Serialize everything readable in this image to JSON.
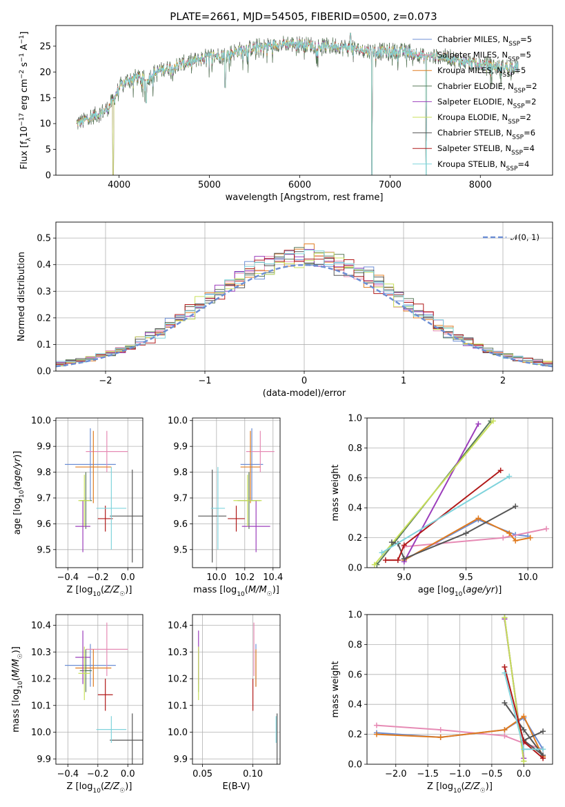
{
  "title": "PLATE=2661, MJD=54505, FIBERID=0500, z=0.073",
  "colors": {
    "Chabrier MILES": "#6c8ed4",
    "Salpeter MILES": "#e68ab4",
    "Kroupa MILES": "#e07b1f",
    "Chabrier ELODIE": "#5a7a5a",
    "Salpeter ELODIE": "#9b3dbb",
    "Kroupa ELODIE": "#c8e05a",
    "Chabrier STELIB": "#555555",
    "Salpeter STELIB": "#b01818",
    "Kroupa STELIB": "#7fd3dc"
  },
  "chart_data": [
    {
      "id": "spectrum",
      "type": "line",
      "xlabel": "wavelength [Angstrom, rest frame]",
      "ylabel": "Flux [f_λ 10^-17 erg cm^-2 s^-1 A^-1]",
      "xlim": [
        3300,
        8800
      ],
      "ylim": [
        0,
        29
      ],
      "xticks": [
        4000,
        5000,
        6000,
        7000,
        8000
      ],
      "yticks": [
        0,
        5,
        10,
        15,
        20,
        25
      ],
      "legend_position": "right",
      "legend": [
        {
          "name": "Chabrier MILES",
          "label": "Chabrier MILES, N",
          "sub": "SSP",
          "suffix": "=5"
        },
        {
          "name": "Salpeter MILES",
          "label": "Salpeter MILES, N",
          "sub": "SSP",
          "suffix": "=5"
        },
        {
          "name": "Kroupa MILES",
          "label": "Kroupa MILES, N",
          "sub": "SSP",
          "suffix": "=5"
        },
        {
          "name": "Chabrier ELODIE",
          "label": "Chabrier ELODIE, N",
          "sub": "SSP",
          "suffix": "=2"
        },
        {
          "name": "Salpeter ELODIE",
          "label": "Salpeter ELODIE, N",
          "sub": "SSP",
          "suffix": "=2"
        },
        {
          "name": "Kroupa ELODIE",
          "label": "Kroupa ELODIE, N",
          "sub": "SSP",
          "suffix": "=2"
        },
        {
          "name": "Chabrier STELIB",
          "label": "Chabrier STELIB, N",
          "sub": "SSP",
          "suffix": "=6"
        },
        {
          "name": "Salpeter STELIB",
          "label": "Salpeter STELIB, N",
          "sub": "SSP",
          "suffix": "=4"
        },
        {
          "name": "Kroupa STELIB",
          "label": "Kroupa STELIB, N",
          "sub": "SSP",
          "suffix": "=4"
        }
      ],
      "continuum": [
        [
          3530,
          10
        ],
        [
          3600,
          10.5
        ],
        [
          3700,
          11.5
        ],
        [
          3800,
          12
        ],
        [
          3880,
          13
        ],
        [
          3950,
          15
        ],
        [
          4000,
          17
        ],
        [
          4100,
          18.5
        ],
        [
          4200,
          19
        ],
        [
          4300,
          18.5
        ],
        [
          4400,
          20
        ],
        [
          4600,
          21
        ],
        [
          4800,
          22
        ],
        [
          5000,
          23
        ],
        [
          5200,
          23.5
        ],
        [
          5400,
          24.5
        ],
        [
          5600,
          25
        ],
        [
          5800,
          25.5
        ],
        [
          6000,
          25.5
        ],
        [
          6200,
          25
        ],
        [
          6400,
          25
        ],
        [
          6600,
          24.5
        ],
        [
          6800,
          24
        ],
        [
          7000,
          24
        ],
        [
          7200,
          24
        ],
        [
          7400,
          23
        ],
        [
          7600,
          23
        ],
        [
          7800,
          22
        ],
        [
          8000,
          21.5
        ],
        [
          8200,
          21
        ],
        [
          8400,
          21
        ]
      ],
      "data_range": [
        3530,
        8420
      ],
      "dips": [
        [
          3934,
          2
        ],
        [
          4300,
          14
        ],
        [
          5175,
          17
        ],
        [
          6563,
          27.5
        ],
        [
          6800,
          0
        ],
        [
          7400,
          0
        ]
      ]
    },
    {
      "id": "residuals",
      "type": "histogram",
      "xlabel": "(data-model)/error",
      "ylabel": "Normed distribution",
      "xlim": [
        -2.5,
        2.5
      ],
      "ylim": [
        0,
        0.56
      ],
      "xticks": [
        -2,
        -1,
        0,
        1,
        2
      ],
      "yticks": [
        0.0,
        0.1,
        0.2,
        0.3,
        0.4,
        0.5
      ],
      "legend_position": "top-right",
      "reference_curve": {
        "name": "𝒩(0, 1)",
        "mean": 0,
        "sigma": 1
      },
      "bins": 50,
      "series_note": "nine histograms, one per model, close to the normal curve"
    },
    {
      "id": "age-vs-Z",
      "type": "errorbar",
      "xlabel": "Z [log10(Z/Z☉)]",
      "ylabel": "age [log10(age/yr)]",
      "xlim": [
        -0.48,
        0.1
      ],
      "ylim": [
        9.43,
        10.01
      ],
      "xticks": [
        -0.4,
        -0.2,
        0.0
      ],
      "yticks": [
        9.5,
        9.6,
        9.7,
        9.8,
        9.9,
        10.0
      ],
      "points": [
        {
          "model": "Chabrier MILES",
          "x": -0.25,
          "xerr": 0.17,
          "y": 9.83,
          "yerr": 0.14
        },
        {
          "model": "Salpeter MILES",
          "x": -0.14,
          "xerr": 0.14,
          "y": 9.88,
          "yerr": 0.08
        },
        {
          "model": "Kroupa MILES",
          "x": -0.23,
          "xerr": 0.12,
          "y": 9.82,
          "yerr": 0.14
        },
        {
          "model": "Chabrier ELODIE",
          "x": -0.28,
          "xerr": 0.04,
          "y": 9.69,
          "yerr": 0.11
        },
        {
          "model": "Salpeter ELODIE",
          "x": -0.3,
          "xerr": 0.05,
          "y": 9.59,
          "yerr": 0.1
        },
        {
          "model": "Kroupa ELODIE",
          "x": -0.29,
          "xerr": 0.04,
          "y": 9.69,
          "yerr": 0.1
        },
        {
          "model": "Chabrier STELIB",
          "x": 0.03,
          "xerr": 0.15,
          "y": 9.63,
          "yerr": 0.18
        },
        {
          "model": "Salpeter STELIB",
          "x": -0.15,
          "xerr": 0.05,
          "y": 9.62,
          "yerr": 0.05
        },
        {
          "model": "Kroupa STELIB",
          "x": -0.11,
          "xerr": 0.1,
          "y": 9.66,
          "yerr": 0.16
        }
      ]
    },
    {
      "id": "age-vs-mass",
      "type": "errorbar",
      "xlabel": "mass [log10(M/M☉)]",
      "ylabel": "",
      "xlim": [
        9.83,
        10.45
      ],
      "ylim": [
        9.43,
        10.01
      ],
      "xticks": [
        10.0,
        10.2,
        10.4
      ],
      "yticks": [
        9.5,
        9.6,
        9.7,
        9.8,
        9.9,
        10.0
      ],
      "points": [
        {
          "model": "Chabrier MILES",
          "x": 10.25,
          "xerr": 0.08,
          "y": 9.83,
          "yerr": 0.14
        },
        {
          "model": "Salpeter MILES",
          "x": 10.31,
          "xerr": 0.1,
          "y": 9.88,
          "yerr": 0.08
        },
        {
          "model": "Kroupa MILES",
          "x": 10.24,
          "xerr": 0.07,
          "y": 9.82,
          "yerr": 0.14
        },
        {
          "model": "Chabrier ELODIE",
          "x": 10.23,
          "xerr": 0.08,
          "y": 9.69,
          "yerr": 0.11
        },
        {
          "model": "Salpeter ELODIE",
          "x": 10.28,
          "xerr": 0.1,
          "y": 9.59,
          "yerr": 0.1
        },
        {
          "model": "Kroupa ELODIE",
          "x": 10.22,
          "xerr": 0.1,
          "y": 9.69,
          "yerr": 0.1
        },
        {
          "model": "Chabrier STELIB",
          "x": 9.97,
          "xerr": 0.1,
          "y": 9.63,
          "yerr": 0.18
        },
        {
          "model": "Salpeter STELIB",
          "x": 10.14,
          "xerr": 0.06,
          "y": 9.62,
          "yerr": 0.05
        },
        {
          "model": "Kroupa STELIB",
          "x": 10.01,
          "xerr": 0.05,
          "y": 9.66,
          "yerr": 0.16
        }
      ]
    },
    {
      "id": "weight-vs-age",
      "type": "line",
      "xlabel": "age [log10(age/yr)]",
      "ylabel": "mass weight",
      "xlim": [
        8.7,
        10.2
      ],
      "ylim": [
        0,
        1
      ],
      "xticks": [
        9.0,
        9.5,
        10.0
      ],
      "yticks": [
        0.0,
        0.2,
        0.4,
        0.6,
        0.8,
        1.0
      ],
      "series": [
        {
          "name": "Chabrier MILES",
          "x": [
            9.0,
            9.6,
            9.9,
            10.0
          ],
          "y": [
            0.05,
            0.32,
            0.22,
            0.21
          ]
        },
        {
          "name": "Salpeter MILES",
          "x": [
            9.0,
            9.8,
            10.15
          ],
          "y": [
            0.14,
            0.2,
            0.26
          ]
        },
        {
          "name": "Kroupa MILES",
          "x": [
            9.0,
            9.6,
            9.85,
            9.9,
            10.02
          ],
          "y": [
            0.05,
            0.33,
            0.23,
            0.18,
            0.2
          ]
        },
        {
          "name": "Chabrier ELODIE",
          "x": [
            8.78,
            9.7
          ],
          "y": [
            0.02,
            0.98
          ]
        },
        {
          "name": "Salpeter ELODIE",
          "x": [
            9.0,
            9.6
          ],
          "y": [
            0.04,
            0.96
          ]
        },
        {
          "name": "Kroupa ELODIE",
          "x": [
            8.76,
            9.72
          ],
          "y": [
            0.02,
            0.98
          ]
        },
        {
          "name": "Chabrier STELIB",
          "x": [
            8.9,
            8.95,
            9.0,
            9.5,
            9.9
          ],
          "y": [
            0.17,
            0.16,
            0.06,
            0.23,
            0.41
          ]
        },
        {
          "name": "Salpeter STELIB",
          "x": [
            8.85,
            8.95,
            9.0,
            9.78
          ],
          "y": [
            0.05,
            0.05,
            0.15,
            0.65
          ]
        },
        {
          "name": "Kroupa STELIB",
          "x": [
            8.82,
            9.85
          ],
          "y": [
            0.1,
            0.61
          ]
        }
      ]
    },
    {
      "id": "mass-vs-Z",
      "type": "errorbar",
      "xlabel": "Z [log10(Z/Z☉)]",
      "ylabel": "mass [log10(M/M☉)]",
      "xlim": [
        -0.48,
        0.1
      ],
      "ylim": [
        9.88,
        10.44
      ],
      "xticks": [
        -0.4,
        -0.2,
        0.0
      ],
      "yticks": [
        9.9,
        10.0,
        10.1,
        10.2,
        10.3,
        10.4
      ],
      "points": [
        {
          "model": "Chabrier MILES",
          "x": -0.25,
          "xerr": 0.17,
          "y": 10.25,
          "yerr": 0.08
        },
        {
          "model": "Salpeter MILES",
          "x": -0.14,
          "xerr": 0.14,
          "y": 10.31,
          "yerr": 0.1
        },
        {
          "model": "Kroupa MILES",
          "x": -0.23,
          "xerr": 0.12,
          "y": 10.24,
          "yerr": 0.07
        },
        {
          "model": "Chabrier ELODIE",
          "x": -0.28,
          "xerr": 0.04,
          "y": 10.23,
          "yerr": 0.08
        },
        {
          "model": "Salpeter ELODIE",
          "x": -0.3,
          "xerr": 0.05,
          "y": 10.28,
          "yerr": 0.1
        },
        {
          "model": "Kroupa ELODIE",
          "x": -0.29,
          "xerr": 0.04,
          "y": 10.22,
          "yerr": 0.1
        },
        {
          "model": "Chabrier STELIB",
          "x": 0.03,
          "xerr": 0.15,
          "y": 9.97,
          "yerr": 0.1
        },
        {
          "model": "Salpeter STELIB",
          "x": -0.15,
          "xerr": 0.05,
          "y": 10.14,
          "yerr": 0.06
        },
        {
          "model": "Kroupa STELIB",
          "x": -0.11,
          "xerr": 0.1,
          "y": 10.01,
          "yerr": 0.05
        }
      ]
    },
    {
      "id": "mass-vs-ebv",
      "type": "errorbar",
      "xlabel": "E(B-V)",
      "ylabel": "",
      "xlim": [
        0.04,
        0.127
      ],
      "ylim": [
        9.88,
        10.44
      ],
      "xticks": [
        0.05,
        0.1
      ],
      "yticks": [
        9.9,
        10.0,
        10.1,
        10.2,
        10.3,
        10.4
      ],
      "points": [
        {
          "model": "Chabrier MILES",
          "x": 0.103,
          "xerr": 0,
          "y": 10.25,
          "yerr": 0.08
        },
        {
          "model": "Salpeter MILES",
          "x": 0.101,
          "xerr": 0,
          "y": 10.31,
          "yerr": 0.1
        },
        {
          "model": "Kroupa MILES",
          "x": 0.103,
          "xerr": 0,
          "y": 10.24,
          "yerr": 0.07
        },
        {
          "model": "Chabrier ELODIE",
          "x": 0.046,
          "xerr": 0,
          "y": 10.23,
          "yerr": 0.08
        },
        {
          "model": "Salpeter ELODIE",
          "x": 0.046,
          "xerr": 0,
          "y": 10.28,
          "yerr": 0.1
        },
        {
          "model": "Kroupa ELODIE",
          "x": 0.046,
          "xerr": 0,
          "y": 10.22,
          "yerr": 0.1
        },
        {
          "model": "Chabrier STELIB",
          "x": 0.124,
          "xerr": 0,
          "y": 9.97,
          "yerr": 0.1
        },
        {
          "model": "Salpeter STELIB",
          "x": 0.1,
          "xerr": 0,
          "y": 10.14,
          "yerr": 0.06
        },
        {
          "model": "Kroupa STELIB",
          "x": 0.123,
          "xerr": 0,
          "y": 10.01,
          "yerr": 0.05
        }
      ]
    },
    {
      "id": "weight-vs-Z",
      "type": "line",
      "xlabel": "Z [log10(Z/Z☉)]",
      "ylabel": "mass weight",
      "xlim": [
        -2.45,
        0.45
      ],
      "ylim": [
        0,
        1
      ],
      "xticks": [
        -2.0,
        -1.5,
        -1.0,
        -0.5,
        0.0
      ],
      "yticks": [
        0.0,
        0.2,
        0.4,
        0.6,
        0.8,
        1.0
      ],
      "series": [
        {
          "name": "Chabrier MILES",
          "x": [
            -2.3,
            -1.3,
            -0.3,
            0.0,
            0.3
          ],
          "y": [
            0.21,
            0.18,
            0.23,
            0.31,
            0.1
          ]
        },
        {
          "name": "Salpeter MILES",
          "x": [
            -2.3,
            -1.3,
            -0.3,
            0.0,
            0.3
          ],
          "y": [
            0.26,
            0.23,
            0.19,
            0.14,
            0.1
          ]
        },
        {
          "name": "Kroupa MILES",
          "x": [
            -2.3,
            -1.3,
            -0.3,
            0.0,
            0.3
          ],
          "y": [
            0.2,
            0.18,
            0.23,
            0.32,
            0.05
          ]
        },
        {
          "name": "Chabrier ELODIE",
          "x": [
            -0.3,
            0.0
          ],
          "y": [
            0.98,
            0.02
          ]
        },
        {
          "name": "Salpeter ELODIE",
          "x": [
            -0.3,
            0.0
          ],
          "y": [
            0.97,
            0.04
          ]
        },
        {
          "name": "Kroupa ELODIE",
          "x": [
            -0.3,
            0.0
          ],
          "y": [
            0.98,
            0.02
          ]
        },
        {
          "name": "Chabrier STELIB",
          "x": [
            -0.3,
            0.0,
            0.3,
            0.0,
            0.3
          ],
          "y": [
            0.41,
            0.23,
            0.06,
            0.16,
            0.22
          ]
        },
        {
          "name": "Salpeter STELIB",
          "x": [
            -0.3,
            0.0,
            0.3
          ],
          "y": [
            0.65,
            0.15,
            0.04
          ]
        },
        {
          "name": "Kroupa STELIB",
          "x": [
            -0.3,
            0.0,
            0.3
          ],
          "y": [
            0.61,
            0.1,
            0.1
          ]
        }
      ]
    }
  ]
}
